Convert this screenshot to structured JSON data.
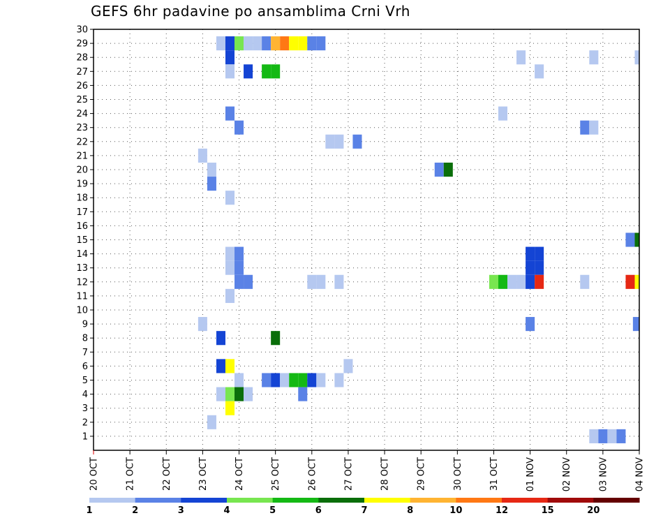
{
  "chart_data": {
    "type": "heatmap",
    "title": "GEFS 6hr padavine po ansamblima Crni Vrh",
    "xlabel": "",
    "ylabel": "",
    "x_ticks": [
      "20 OCT",
      "21 OCT",
      "22 OCT",
      "23 OCT",
      "24 OCT",
      "25 OCT",
      "26 OCT",
      "27 OCT",
      "28 OCT",
      "29 OCT",
      "30 OCT",
      "31 OCT",
      "01 NOV",
      "02 NOV",
      "03 NOV",
      "04 NOV"
    ],
    "xlim": [
      0,
      15
    ],
    "ylim": [
      0,
      30
    ],
    "y_ticks": [
      1,
      2,
      3,
      4,
      5,
      6,
      7,
      8,
      9,
      10,
      11,
      12,
      13,
      14,
      15,
      16,
      17,
      18,
      19,
      20,
      21,
      22,
      23,
      24,
      25,
      26,
      27,
      28,
      29,
      30
    ],
    "grid": true,
    "step_days": 0.25,
    "colorbar": {
      "labels": [
        "1",
        "2",
        "3",
        "4",
        "5",
        "6",
        "7",
        "8",
        "10",
        "12",
        "15",
        "20"
      ],
      "colors": [
        "#b5c8f0",
        "#5a82e6",
        "#1444d4",
        "#78e650",
        "#14b914",
        "#0a6e0a",
        "#ffff00",
        "#ffb432",
        "#ff7814",
        "#e62814",
        "#a00a0a",
        "#640000"
      ]
    },
    "cells": [
      {
        "member": 29,
        "day": 3.5,
        "level": 1
      },
      {
        "member": 29,
        "day": 3.75,
        "level": 3
      },
      {
        "member": 29,
        "day": 4.0,
        "level": 4
      },
      {
        "member": 29,
        "day": 4.25,
        "level": 1
      },
      {
        "member": 29,
        "day": 4.5,
        "level": 1
      },
      {
        "member": 29,
        "day": 4.75,
        "level": 2
      },
      {
        "member": 29,
        "day": 5.0,
        "level": 8
      },
      {
        "member": 29,
        "day": 5.25,
        "level": 9
      },
      {
        "member": 29,
        "day": 5.5,
        "level": 7
      },
      {
        "member": 29,
        "day": 5.75,
        "level": 7
      },
      {
        "member": 29,
        "day": 6.0,
        "level": 2
      },
      {
        "member": 29,
        "day": 6.25,
        "level": 2
      },
      {
        "member": 28,
        "day": 3.75,
        "level": 3
      },
      {
        "member": 28,
        "day": 11.75,
        "level": 1
      },
      {
        "member": 28,
        "day": 13.75,
        "level": 1
      },
      {
        "member": 28,
        "day": 15.0,
        "level": 1
      },
      {
        "member": 27,
        "day": 3.75,
        "level": 1
      },
      {
        "member": 27,
        "day": 4.25,
        "level": 3
      },
      {
        "member": 27,
        "day": 4.75,
        "level": 5
      },
      {
        "member": 27,
        "day": 5.0,
        "level": 5
      },
      {
        "member": 27,
        "day": 12.25,
        "level": 1
      },
      {
        "member": 24,
        "day": 3.75,
        "level": 2
      },
      {
        "member": 24,
        "day": 11.25,
        "level": 1
      },
      {
        "member": 23,
        "day": 4.0,
        "level": 2
      },
      {
        "member": 23,
        "day": 13.5,
        "level": 2
      },
      {
        "member": 23,
        "day": 13.75,
        "level": 1
      },
      {
        "member": 22,
        "day": 6.5,
        "level": 1
      },
      {
        "member": 22,
        "day": 6.75,
        "level": 1
      },
      {
        "member": 22,
        "day": 7.25,
        "level": 2
      },
      {
        "member": 21,
        "day": 3.0,
        "level": 1
      },
      {
        "member": 20,
        "day": 3.25,
        "level": 1
      },
      {
        "member": 20,
        "day": 9.5,
        "level": 2
      },
      {
        "member": 20,
        "day": 9.75,
        "level": 6
      },
      {
        "member": 19,
        "day": 3.25,
        "level": 2
      },
      {
        "member": 18,
        "day": 3.75,
        "level": 1
      },
      {
        "member": 15,
        "day": 14.75,
        "level": 2
      },
      {
        "member": 15,
        "day": 15.0,
        "level": 6
      },
      {
        "member": 14,
        "day": 3.75,
        "level": 1
      },
      {
        "member": 14,
        "day": 4.0,
        "level": 2
      },
      {
        "member": 14,
        "day": 12.0,
        "level": 3
      },
      {
        "member": 14,
        "day": 12.25,
        "level": 3
      },
      {
        "member": 13,
        "day": 3.75,
        "level": 1
      },
      {
        "member": 13,
        "day": 4.0,
        "level": 2
      },
      {
        "member": 13,
        "day": 12.0,
        "level": 3
      },
      {
        "member": 13,
        "day": 12.25,
        "level": 3
      },
      {
        "member": 12,
        "day": 4.0,
        "level": 2
      },
      {
        "member": 12,
        "day": 4.25,
        "level": 2
      },
      {
        "member": 12,
        "day": 6.0,
        "level": 1
      },
      {
        "member": 12,
        "day": 6.25,
        "level": 1
      },
      {
        "member": 12,
        "day": 6.75,
        "level": 1
      },
      {
        "member": 12,
        "day": 11.0,
        "level": 4
      },
      {
        "member": 12,
        "day": 11.25,
        "level": 5
      },
      {
        "member": 12,
        "day": 11.5,
        "level": 1
      },
      {
        "member": 12,
        "day": 11.75,
        "level": 1
      },
      {
        "member": 12,
        "day": 12.0,
        "level": 3
      },
      {
        "member": 12,
        "day": 12.25,
        "level": 10
      },
      {
        "member": 12,
        "day": 13.5,
        "level": 1
      },
      {
        "member": 12,
        "day": 14.75,
        "level": 10
      },
      {
        "member": 12,
        "day": 15.0,
        "level": 7
      },
      {
        "member": 11,
        "day": 3.75,
        "level": 1
      },
      {
        "member": 9,
        "day": 3.0,
        "level": 1
      },
      {
        "member": 9,
        "day": 12.0,
        "level": 2
      },
      {
        "member": 9,
        "day": 14.95,
        "level": 2
      },
      {
        "member": 8,
        "day": 3.5,
        "level": 3
      },
      {
        "member": 8,
        "day": 5.0,
        "level": 6
      },
      {
        "member": 6,
        "day": 3.5,
        "level": 3
      },
      {
        "member": 6,
        "day": 3.75,
        "level": 7
      },
      {
        "member": 6,
        "day": 7.0,
        "level": 1
      },
      {
        "member": 5,
        "day": 4.0,
        "level": 1
      },
      {
        "member": 5,
        "day": 4.75,
        "level": 2
      },
      {
        "member": 5,
        "day": 5.0,
        "level": 3
      },
      {
        "member": 5,
        "day": 5.25,
        "level": 1
      },
      {
        "member": 5,
        "day": 5.5,
        "level": 5
      },
      {
        "member": 5,
        "day": 5.75,
        "level": 5
      },
      {
        "member": 5,
        "day": 6.0,
        "level": 3
      },
      {
        "member": 5,
        "day": 6.25,
        "level": 1
      },
      {
        "member": 5,
        "day": 6.75,
        "level": 1
      },
      {
        "member": 4,
        "day": 3.5,
        "level": 1
      },
      {
        "member": 4,
        "day": 3.75,
        "level": 4
      },
      {
        "member": 4,
        "day": 4.0,
        "level": 6
      },
      {
        "member": 4,
        "day": 4.25,
        "level": 1
      },
      {
        "member": 4,
        "day": 5.75,
        "level": 2
      },
      {
        "member": 3,
        "day": 3.75,
        "level": 7
      },
      {
        "member": 2,
        "day": 3.25,
        "level": 1
      },
      {
        "member": 1,
        "day": 13.75,
        "level": 1
      },
      {
        "member": 1,
        "day": 14.0,
        "level": 2
      },
      {
        "member": 1,
        "day": 14.25,
        "level": 1
      },
      {
        "member": 1,
        "day": 14.5,
        "level": 2
      }
    ]
  }
}
